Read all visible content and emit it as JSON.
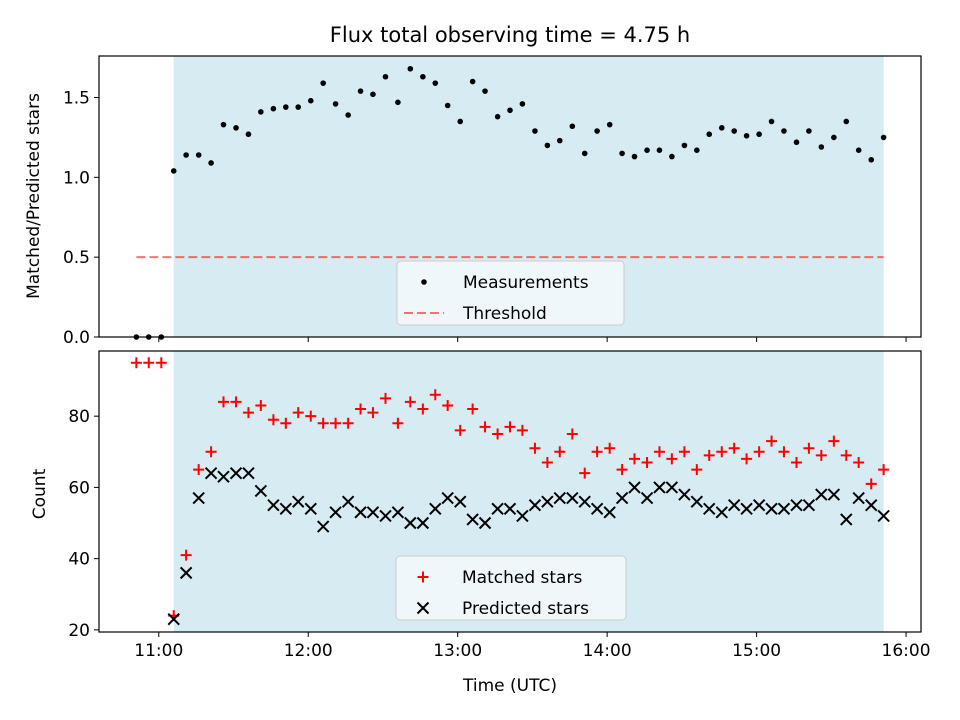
{
  "title": "Flux total observing time = 4.75 h",
  "colors": {
    "span": "#add8e6",
    "threshold": "#ff0000",
    "matched": "#ff0000",
    "predicted": "#000000",
    "measurement": "#000000",
    "legend_bg": "#f5f9fc"
  },
  "chart_data": [
    {
      "type": "scatter",
      "ylabel": "Matched/Predicted stars",
      "xlim": [
        10.6,
        16.1
      ],
      "ylim": [
        0,
        1.76
      ],
      "xticks": [
        11,
        12,
        13,
        14,
        15,
        16
      ],
      "xtick_labels_visible": false,
      "yticks": [
        0,
        0.5,
        1.0,
        1.5
      ],
      "ytick_labels": [
        "0.0",
        "0.5",
        "1.0",
        "1.5"
      ],
      "shaded_span": [
        11.1,
        15.85
      ],
      "legend": {
        "position": "lower center",
        "items": [
          "Measurements",
          "Threshold"
        ]
      },
      "series": [
        {
          "name": "Measurements",
          "kind": "points",
          "x": [
            10.85,
            10.933,
            11.017,
            11.1,
            11.183,
            11.267,
            11.35,
            11.433,
            11.517,
            11.6,
            11.683,
            11.767,
            11.85,
            11.933,
            12.017,
            12.1,
            12.183,
            12.267,
            12.35,
            12.433,
            12.517,
            12.6,
            12.683,
            12.767,
            12.85,
            12.933,
            13.017,
            13.1,
            13.183,
            13.267,
            13.35,
            13.433,
            13.517,
            13.6,
            13.683,
            13.767,
            13.85,
            13.933,
            14.017,
            14.1,
            14.183,
            14.267,
            14.35,
            14.433,
            14.517,
            14.6,
            14.683,
            14.767,
            14.85,
            14.933,
            15.017,
            15.1,
            15.183,
            15.267,
            15.35,
            15.433,
            15.517,
            15.6,
            15.683,
            15.767,
            15.85
          ],
          "y": [
            0.0,
            0.0,
            0.0,
            1.04,
            1.14,
            1.14,
            1.09,
            1.33,
            1.31,
            1.27,
            1.41,
            1.43,
            1.44,
            1.44,
            1.48,
            1.59,
            1.46,
            1.39,
            1.54,
            1.52,
            1.63,
            1.47,
            1.68,
            1.63,
            1.59,
            1.45,
            1.35,
            1.6,
            1.54,
            1.38,
            1.42,
            1.46,
            1.29,
            1.2,
            1.23,
            1.32,
            1.15,
            1.29,
            1.33,
            1.15,
            1.13,
            1.17,
            1.17,
            1.13,
            1.2,
            1.17,
            1.27,
            1.31,
            1.29,
            1.26,
            1.27,
            1.35,
            1.29,
            1.22,
            1.29,
            1.19,
            1.25,
            1.35,
            1.17,
            1.11,
            1.25
          ]
        },
        {
          "name": "Threshold",
          "kind": "dashed-line",
          "x": [
            10.85,
            15.85
          ],
          "y": [
            0.5,
            0.5
          ]
        }
      ]
    },
    {
      "type": "scatter",
      "ylabel": "Count",
      "xlabel": "Time (UTC)",
      "xlim": [
        10.6,
        16.1
      ],
      "ylim": [
        19.4,
        98.3
      ],
      "xticks": [
        11,
        12,
        13,
        14,
        15,
        16
      ],
      "xtick_labels": [
        "11:00",
        "12:00",
        "13:00",
        "14:00",
        "15:00",
        "16:00"
      ],
      "yticks": [
        20,
        40,
        60,
        80
      ],
      "ytick_labels": [
        "20",
        "40",
        "60",
        "80"
      ],
      "shaded_span": [
        11.1,
        15.85
      ],
      "legend": {
        "position": "lower center",
        "items": [
          "Matched stars",
          "Predicted stars"
        ]
      },
      "series": [
        {
          "name": "Matched stars",
          "marker": "+",
          "x": [
            10.85,
            10.933,
            11.017,
            11.1,
            11.183,
            11.267,
            11.35,
            11.433,
            11.517,
            11.6,
            11.683,
            11.767,
            11.85,
            11.933,
            12.017,
            12.1,
            12.183,
            12.267,
            12.35,
            12.433,
            12.517,
            12.6,
            12.683,
            12.767,
            12.85,
            12.933,
            13.017,
            13.1,
            13.183,
            13.267,
            13.35,
            13.433,
            13.517,
            13.6,
            13.683,
            13.767,
            13.85,
            13.933,
            14.017,
            14.1,
            14.183,
            14.267,
            14.35,
            14.433,
            14.517,
            14.6,
            14.683,
            14.767,
            14.85,
            14.933,
            15.017,
            15.1,
            15.183,
            15.267,
            15.35,
            15.433,
            15.517,
            15.6,
            15.683,
            15.767,
            15.85
          ],
          "y": [
            95,
            95,
            95,
            24,
            41,
            65,
            70,
            84,
            84,
            81,
            83,
            79,
            78,
            81,
            80,
            78,
            78,
            78,
            82,
            81,
            85,
            78,
            84,
            82,
            86,
            83,
            76,
            82,
            77,
            75,
            77,
            76,
            71,
            67,
            70,
            75,
            64,
            70,
            71,
            65,
            68,
            67,
            70,
            68,
            70,
            65,
            69,
            70,
            71,
            68,
            70,
            73,
            70,
            67,
            71,
            69,
            73,
            69,
            67,
            61,
            65
          ]
        },
        {
          "name": "Predicted stars",
          "marker": "x",
          "x": [
            11.1,
            11.183,
            11.267,
            11.35,
            11.433,
            11.517,
            11.6,
            11.683,
            11.767,
            11.85,
            11.933,
            12.017,
            12.1,
            12.183,
            12.267,
            12.35,
            12.433,
            12.517,
            12.6,
            12.683,
            12.767,
            12.85,
            12.933,
            13.017,
            13.1,
            13.183,
            13.267,
            13.35,
            13.433,
            13.517,
            13.6,
            13.683,
            13.767,
            13.85,
            13.933,
            14.017,
            14.1,
            14.183,
            14.267,
            14.35,
            14.433,
            14.517,
            14.6,
            14.683,
            14.767,
            14.85,
            14.933,
            15.017,
            15.1,
            15.183,
            15.267,
            15.35,
            15.433,
            15.517,
            15.6,
            15.683,
            15.767,
            15.85
          ],
          "y": [
            23,
            36,
            57,
            64,
            63,
            64,
            64,
            59,
            55,
            54,
            56,
            54,
            49,
            53,
            56,
            53,
            53,
            52,
            53,
            50,
            50,
            54,
            57,
            56,
            51,
            50,
            54,
            54,
            52,
            55,
            56,
            57,
            57,
            56,
            54,
            53,
            57,
            60,
            57,
            60,
            60,
            58,
            56,
            54,
            53,
            55,
            54,
            55,
            54,
            54,
            55,
            55,
            58,
            58,
            51,
            57,
            55,
            52
          ]
        }
      ]
    }
  ]
}
